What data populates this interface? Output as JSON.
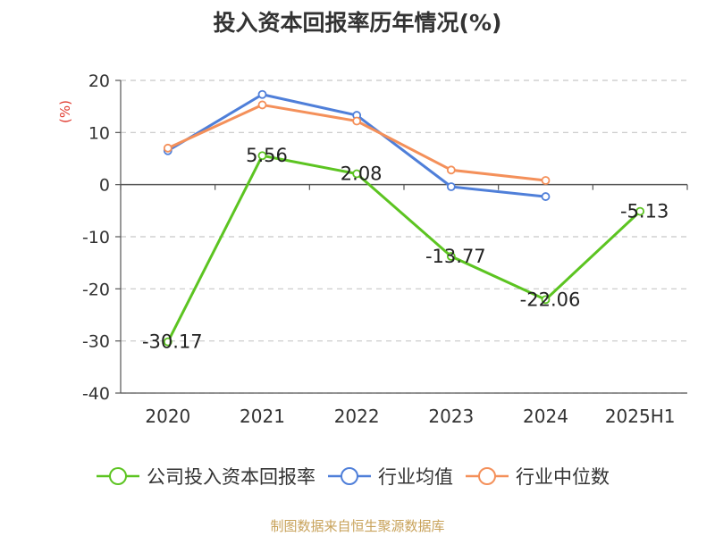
{
  "title": "投入资本回报率历年情况(%)",
  "source_note": "制图数据来自恒生聚源数据库",
  "chart_data": {
    "type": "line",
    "title": "投入资本回报率历年情况(%)",
    "ylabel": "(%)",
    "xlabel": "",
    "categories": [
      "2020",
      "2021",
      "2022",
      "2023",
      "2024",
      "2025H1"
    ],
    "ylim": [
      -40,
      20
    ],
    "yticks": [
      20,
      10,
      0,
      -10,
      -20,
      -30,
      -40
    ],
    "grid": true,
    "legend_position": "bottom",
    "series": [
      {
        "name": "公司投入资本回报率",
        "color": "#5cc421",
        "values": [
          -30.17,
          5.56,
          2.08,
          -13.77,
          -22.06,
          -5.13
        ],
        "labels": [
          "-30.17",
          "5.56",
          "2.08",
          "-13.77",
          "-22.06",
          "-5.13"
        ]
      },
      {
        "name": "行业均值",
        "color": "#4f7fd9",
        "values": [
          6.5,
          17.3,
          13.3,
          -0.4,
          -2.3,
          null
        ]
      },
      {
        "name": "行业中位数",
        "color": "#f4905a",
        "values": [
          7.0,
          15.3,
          12.2,
          2.8,
          0.8,
          null
        ]
      }
    ]
  }
}
